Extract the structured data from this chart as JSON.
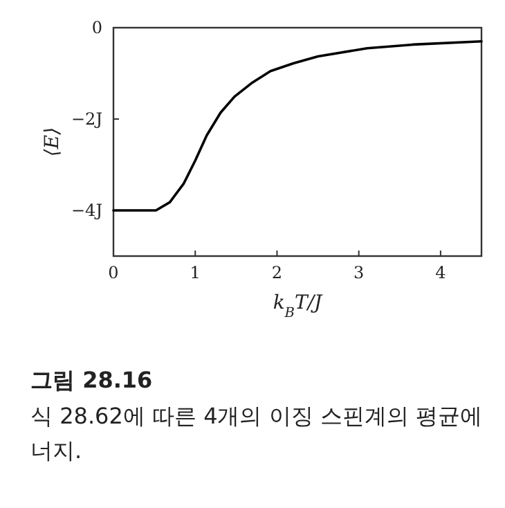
{
  "chart_data": {
    "type": "line",
    "xlabel": "k$_{B}$T/J",
    "ylabel": "⟨E⟩",
    "x": [
      0,
      0.3,
      0.52,
      0.69,
      0.86,
      1.0,
      1.14,
      1.31,
      1.48,
      1.7,
      1.92,
      2.2,
      2.5,
      3.1,
      3.66,
      4.5
    ],
    "values": [
      -4,
      -4,
      -4,
      -3.82,
      -3.41,
      -2.91,
      -2.36,
      -1.86,
      -1.51,
      -1.2,
      -0.95,
      -0.78,
      -0.63,
      -0.45,
      -0.37,
      -0.3
    ],
    "color": "#000000",
    "xlim": [
      0,
      4.5
    ],
    "ylim": [
      -5,
      0
    ],
    "xticks": [
      0,
      1,
      2,
      3,
      4
    ],
    "yticks": [
      0,
      {
        "value": -2,
        "label": "−2J"
      },
      {
        "value": -4,
        "label": "−4J"
      }
    ],
    "annotations": [
      "그림 28.16",
      "식 28.62에 따른 4개의 이징 스핀계의 평균에너지."
    ]
  }
}
